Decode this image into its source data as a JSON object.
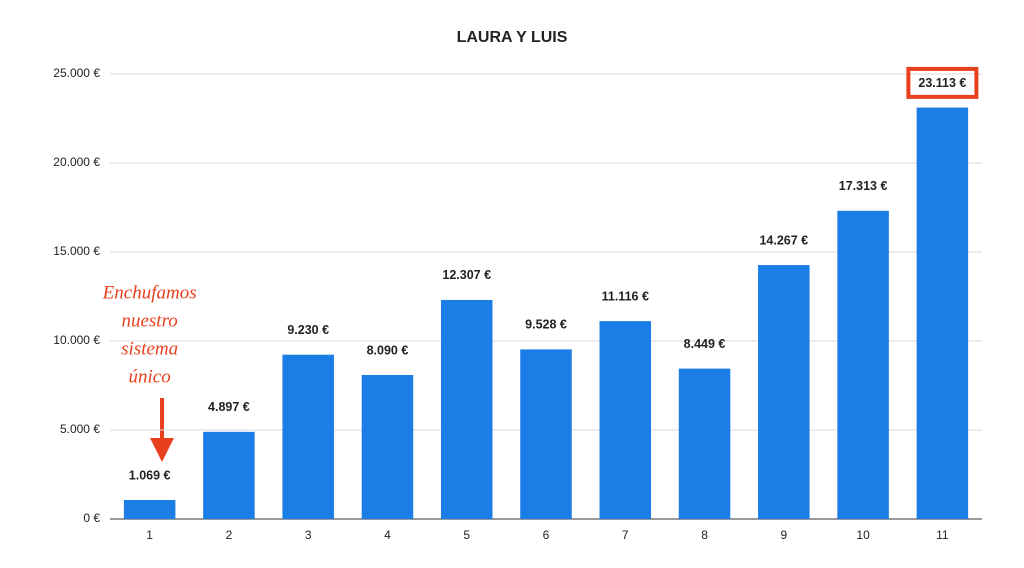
{
  "chart_data": {
    "type": "bar",
    "title": "LAURA Y LUIS",
    "categories": [
      "1",
      "2",
      "3",
      "4",
      "5",
      "6",
      "7",
      "8",
      "9",
      "10",
      "11"
    ],
    "values": [
      1069,
      4897,
      9230,
      8090,
      12307,
      9528,
      11116,
      8449,
      14267,
      17313,
      23113
    ],
    "value_labels": [
      "1.069 €",
      "4.897 €",
      "9.230 €",
      "8.090 €",
      "12.307 €",
      "9.528 €",
      "11.116 €",
      "8.449 €",
      "14.267 €",
      "17.313 €",
      "23.113 €"
    ],
    "color": "#1a7ee6",
    "ylim": [
      0,
      25000
    ],
    "yticks": [
      {
        "value": 0,
        "label": "0 €"
      },
      {
        "value": 5000,
        "label": "5.000 €"
      },
      {
        "value": 10000,
        "label": "10.000 €"
      },
      {
        "value": 15000,
        "label": "15.000 €"
      },
      {
        "value": 20000,
        "label": "20.000 €"
      },
      {
        "value": 25000,
        "label": "25.000 €"
      }
    ],
    "grid": true,
    "annotation": [
      "Enchufamos",
      "nuestro",
      "sistema",
      "único"
    ]
  }
}
